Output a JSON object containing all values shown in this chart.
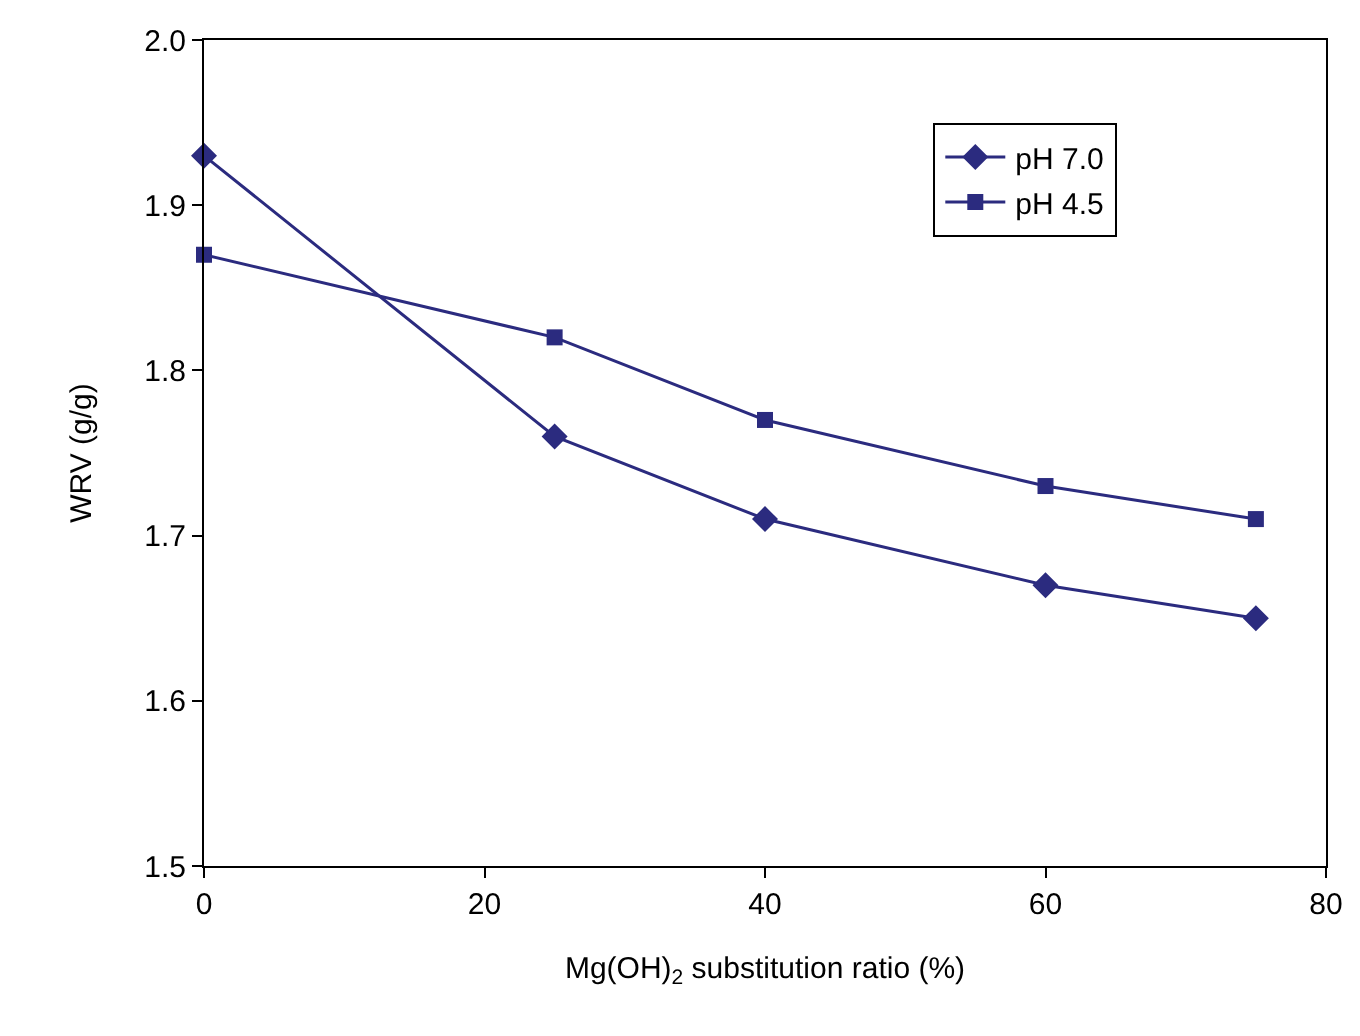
{
  "chart_data": {
    "type": "line",
    "xlabel": "Mg(OH)$_{2}$ substitution ratio (%)",
    "ylabel": "WRV (g/g)",
    "x": [
      0,
      25,
      40,
      60,
      75
    ],
    "series": [
      {
        "name": "pH 7.0",
        "color": "#2b2b7f",
        "marker": "diamond",
        "values": [
          1.93,
          1.76,
          1.71,
          1.67,
          1.65
        ]
      },
      {
        "name": "pH 4.5",
        "color": "#2b2b7f",
        "marker": "square",
        "values": [
          1.87,
          1.82,
          1.77,
          1.73,
          1.71
        ]
      }
    ],
    "xlim": [
      0,
      80
    ],
    "xticks": [
      0,
      20,
      40,
      60,
      80
    ],
    "ylim": [
      1.5,
      2.0
    ],
    "yticks": [
      {
        "value": 1.5,
        "label": "1.5"
      },
      {
        "value": 1.6,
        "label": "1.6"
      },
      {
        "value": 1.7,
        "label": "1.7"
      },
      {
        "value": 1.8,
        "label": "1.8"
      },
      {
        "value": 1.9,
        "label": "1.9"
      },
      {
        "value": 2.0,
        "label": "2.0"
      }
    ],
    "grid": false,
    "legend": "top right",
    "line_style": "solid"
  }
}
